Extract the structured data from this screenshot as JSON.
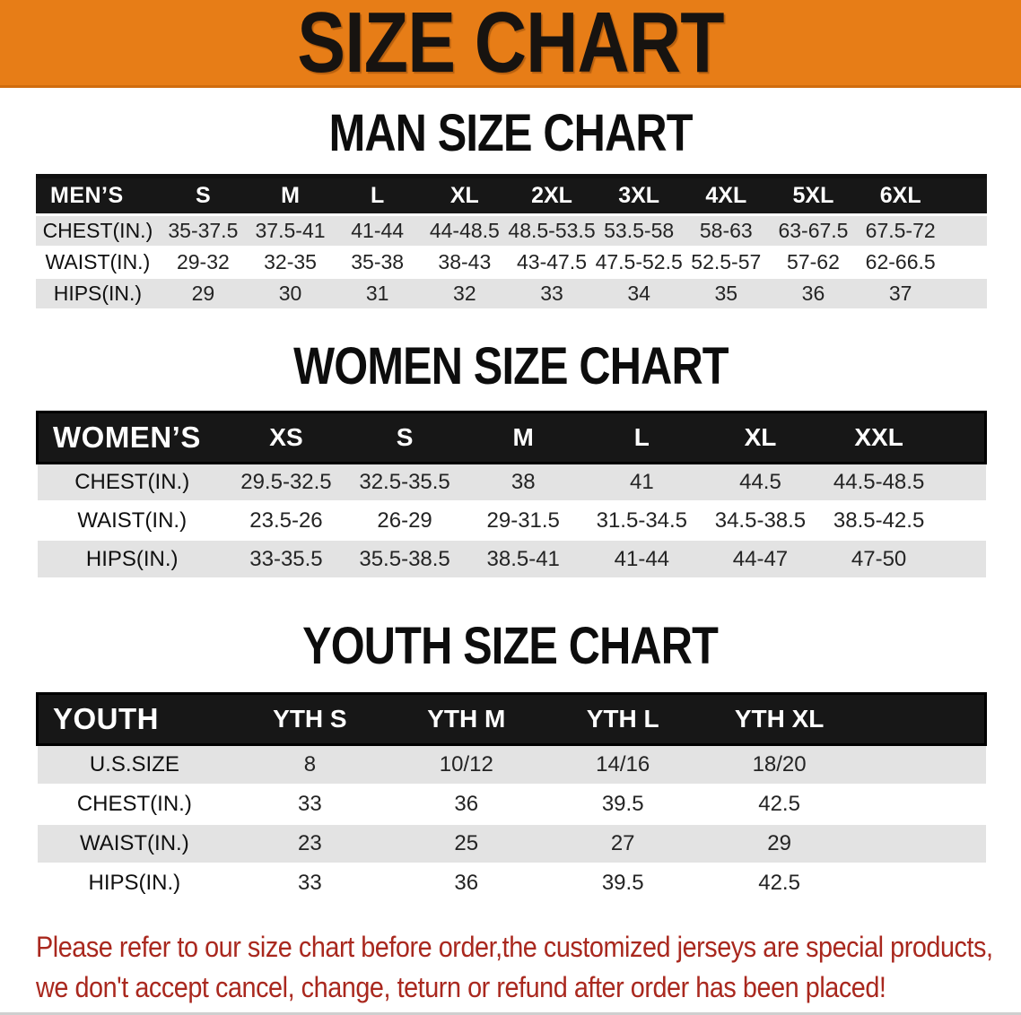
{
  "banner": {
    "title": "SIZE CHART"
  },
  "sections": {
    "men": {
      "title": "MAN SIZE CHART",
      "header": [
        "MEN’S",
        "S",
        "M",
        "L",
        "XL",
        "2XL",
        "3XL",
        "4XL",
        "5XL",
        "6XL"
      ],
      "rows": [
        [
          "CHEST(IN.)",
          "35-37.5",
          "37.5-41",
          "41-44",
          "44-48.5",
          "48.5-53.5",
          "53.5-58",
          "58-63",
          "63-67.5",
          "67.5-72"
        ],
        [
          "WAIST(IN.)",
          "29-32",
          "32-35",
          "35-38",
          "38-43",
          "43-47.5",
          "47.5-52.5",
          "52.5-57",
          "57-62",
          "62-66.5"
        ],
        [
          "HIPS(IN.)",
          "29",
          "30",
          "31",
          "32",
          "33",
          "34",
          "35",
          "36",
          "37"
        ]
      ]
    },
    "women": {
      "title": "WOMEN SIZE CHART",
      "header": [
        "WOMEN’S",
        "XS",
        "S",
        "M",
        "L",
        "XL",
        "XXL"
      ],
      "rows": [
        [
          "CHEST(IN.)",
          "29.5-32.5",
          "32.5-35.5",
          "38",
          "41",
          "44.5",
          "44.5-48.5"
        ],
        [
          "WAIST(IN.)",
          "23.5-26",
          "26-29",
          "29-31.5",
          "31.5-34.5",
          "34.5-38.5",
          "38.5-42.5"
        ],
        [
          "HIPS(IN.)",
          "33-35.5",
          "35.5-38.5",
          "38.5-41",
          "41-44",
          "44-47",
          "47-50"
        ]
      ]
    },
    "youth": {
      "title": "YOUTH SIZE CHART",
      "header": [
        "YOUTH",
        "YTH S",
        "YTH M",
        "YTH L",
        "YTH XL"
      ],
      "rows": [
        [
          "U.S.SIZE",
          "8",
          "10/12",
          "14/16",
          "18/20"
        ],
        [
          "CHEST(IN.)",
          "33",
          "36",
          "39.5",
          "42.5"
        ],
        [
          "WAIST(IN.)",
          "23",
          "25",
          "27",
          "29"
        ],
        [
          "HIPS(IN.)",
          "33",
          "36",
          "39.5",
          "42.5"
        ]
      ]
    }
  },
  "disclaimer": {
    "line1": "Please refer to our size chart before order,the customized jerseys are special products,",
    "line2": "we don't accept cancel, change, teturn or refund after order has been placed!"
  },
  "colors": {
    "banner_bg": "#e77d17",
    "band_bg": "#171717",
    "stripe_gray": "#e3e3e3",
    "disclaimer_red": "#a9281e",
    "title_black": "#0d0d0d"
  }
}
